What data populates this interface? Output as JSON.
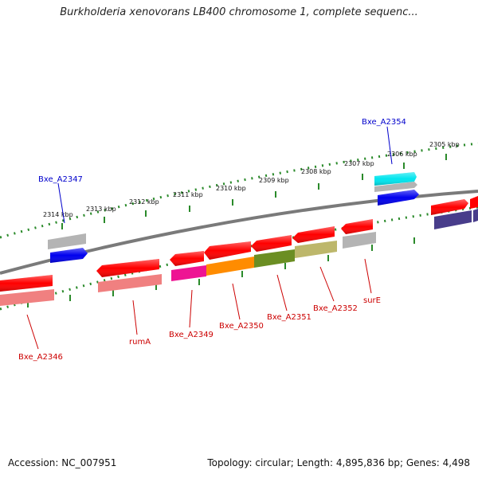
{
  "title": "Burkholderia xenovorans LB400 chromosome 1, complete sequenc...",
  "footer": {
    "accession": "Accession: NC_007951",
    "topology": "Topology: circular; Length: 4,895,836 bp; Genes: 4,498"
  },
  "scale_labels": [
    "2305 kbp",
    "2306 kbp",
    "2307 kbp",
    "2308 kbp",
    "2309 kbp",
    "2310 kbp",
    "2311 kbp",
    "2312 kbp",
    "2313 kbp",
    "2314 kbp"
  ],
  "gene_labels": [
    {
      "name": "Bxe_A2354",
      "color": "#0000cc"
    },
    {
      "name": "Bxe_A2347",
      "color": "#0000cc"
    },
    {
      "name": "Bxe_A2346",
      "color": "#cc0000"
    },
    {
      "name": "rumA",
      "color": "#cc0000"
    },
    {
      "name": "Bxe_A2349",
      "color": "#cc0000"
    },
    {
      "name": "Bxe_A2350",
      "color": "#cc0000"
    },
    {
      "name": "Bxe_A2351",
      "color": "#cc0000"
    },
    {
      "name": "Bxe_A2352",
      "color": "#cc0000"
    },
    {
      "name": "surE",
      "color": "#cc0000"
    }
  ],
  "colors": {
    "backbone": "#7a7a7a",
    "ticks": "#2a8a2a",
    "red": "#ff0000",
    "pink": "#f08080",
    "gray": "#b4b4b4",
    "blue": "#0000ee",
    "cyan": "#00e5ee",
    "magenta": "#ee1493",
    "orange": "#ff8c00",
    "olive": "#6b8e23",
    "khaki": "#bdb76b",
    "navy": "#483d8b"
  }
}
